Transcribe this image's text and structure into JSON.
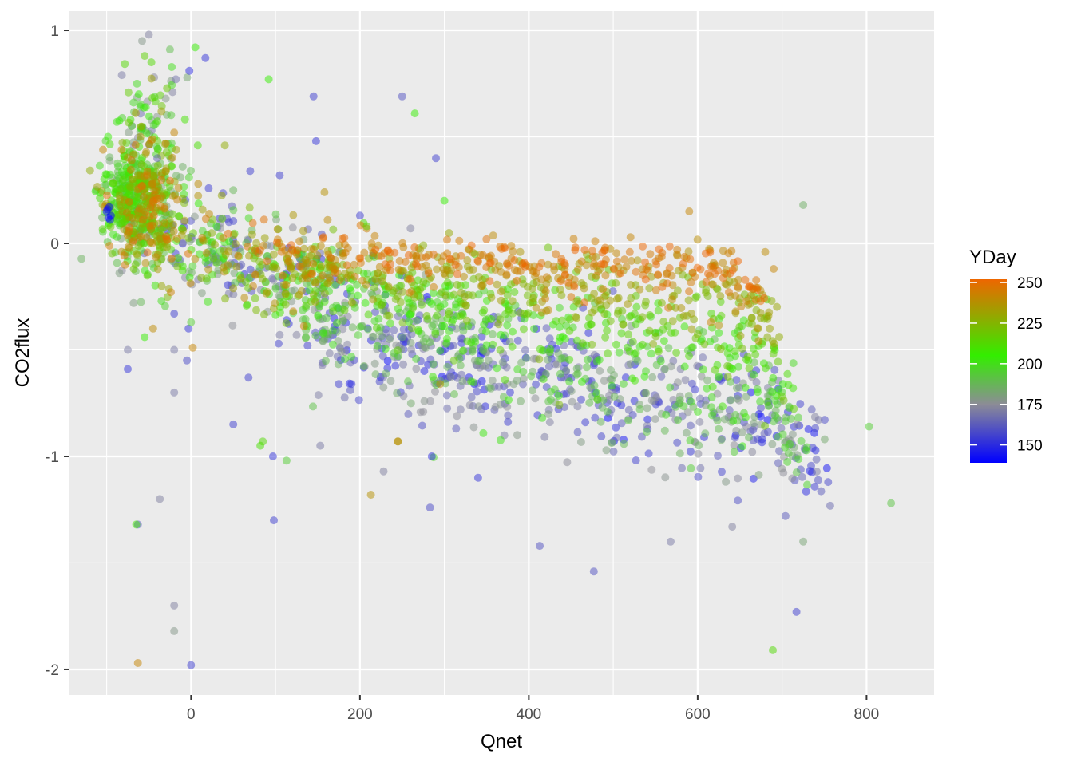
{
  "chart_data": {
    "type": "scatter",
    "title": "",
    "xlabel": "Qnet",
    "ylabel": "CO2flux",
    "xlim": [
      -145,
      880
    ],
    "ylim": [
      -2.12,
      1.09
    ],
    "x_ticks": [
      0,
      200,
      400,
      600,
      800
    ],
    "x_tick_labels": [
      "0",
      "200",
      "400",
      "600",
      "800"
    ],
    "y_ticks": [
      -2,
      -1,
      0,
      1
    ],
    "y_tick_labels": [
      "-2",
      "-1",
      "0",
      "1"
    ],
    "grid": true,
    "panel_background": "#ebebeb",
    "point_alpha": 0.5,
    "legend": {
      "title": "YDay",
      "position": "right",
      "breaks": [
        150,
        175,
        200,
        225,
        250
      ],
      "labels": [
        "150",
        "175",
        "200",
        "225",
        "250"
      ],
      "range": [
        139,
        252
      ],
      "colors": [
        {
          "value": 139,
          "color": "#0000ff"
        },
        {
          "value": 175,
          "color": "#8c8c96"
        },
        {
          "value": 205,
          "color": "#33ee00"
        },
        {
          "value": 252,
          "color": "#ee6600"
        }
      ]
    },
    "points": [
      {
        "x": -100,
        "y": 0.15,
        "c": 141
      },
      {
        "x": -98,
        "y": 0.12,
        "c": 142
      },
      {
        "x": -97,
        "y": 0.17,
        "c": 140
      },
      {
        "x": -95,
        "y": 0.13,
        "c": 141
      },
      {
        "x": -99,
        "y": 0.16,
        "c": 143
      },
      {
        "x": -96,
        "y": 0.11,
        "c": 142
      },
      {
        "x": -58,
        "y": 0.95,
        "c": 178
      },
      {
        "x": -50,
        "y": 0.98,
        "c": 172
      },
      {
        "x": -25,
        "y": 0.91,
        "c": 190
      },
      {
        "x": 5,
        "y": 0.92,
        "c": 205
      },
      {
        "x": 17,
        "y": 0.87,
        "c": 152
      },
      {
        "x": -2,
        "y": 0.81,
        "c": 150
      },
      {
        "x": -55,
        "y": 0.88,
        "c": 215
      },
      {
        "x": -82,
        "y": 0.79,
        "c": 170
      },
      {
        "x": -47,
        "y": 0.85,
        "c": 212
      },
      {
        "x": -18,
        "y": 0.77,
        "c": 168
      },
      {
        "x": -30,
        "y": 0.68,
        "c": 178
      },
      {
        "x": -88,
        "y": 0.57,
        "c": 202
      },
      {
        "x": -62,
        "y": 0.7,
        "c": 205
      },
      {
        "x": -35,
        "y": 0.62,
        "c": 232
      },
      {
        "x": -60,
        "y": 0.5,
        "c": 235
      },
      {
        "x": -20,
        "y": 0.52,
        "c": 242
      },
      {
        "x": 40,
        "y": 0.46,
        "c": 228
      },
      {
        "x": 8,
        "y": 0.46,
        "c": 210
      },
      {
        "x": -40,
        "y": 0.4,
        "c": 165
      },
      {
        "x": -10,
        "y": 0.36,
        "c": 185
      },
      {
        "x": 70,
        "y": 0.34,
        "c": 155
      },
      {
        "x": 105,
        "y": 0.32,
        "c": 155
      },
      {
        "x": 92,
        "y": 0.77,
        "c": 205
      },
      {
        "x": 145,
        "y": 0.69,
        "c": 155
      },
      {
        "x": 250,
        "y": 0.69,
        "c": 160
      },
      {
        "x": 265,
        "y": 0.61,
        "c": 205
      },
      {
        "x": 148,
        "y": 0.48,
        "c": 152
      },
      {
        "x": 290,
        "y": 0.4,
        "c": 155
      },
      {
        "x": 158,
        "y": 0.24,
        "c": 238
      },
      {
        "x": 50,
        "y": 0.25,
        "c": 188
      },
      {
        "x": 300,
        "y": 0.2,
        "c": 205
      },
      {
        "x": 200,
        "y": 0.13,
        "c": 155
      },
      {
        "x": 590,
        "y": 0.15,
        "c": 242
      },
      {
        "x": 725,
        "y": 0.18,
        "c": 185
      },
      {
        "x": 260,
        "y": 0.07,
        "c": 172
      },
      {
        "x": 208,
        "y": 0.08,
        "c": 215
      },
      {
        "x": 680,
        "y": -0.04,
        "c": 240
      },
      {
        "x": 690,
        "y": -0.12,
        "c": 242
      },
      {
        "x": -75,
        "y": -0.59,
        "c": 152
      },
      {
        "x": -75,
        "y": -0.5,
        "c": 170
      },
      {
        "x": -45,
        "y": -0.4,
        "c": 240
      },
      {
        "x": -55,
        "y": -0.44,
        "c": 205
      },
      {
        "x": -20,
        "y": -0.5,
        "c": 170
      },
      {
        "x": -5,
        "y": -0.55,
        "c": 158
      },
      {
        "x": -3,
        "y": -0.4,
        "c": 152
      },
      {
        "x": 2,
        "y": -0.49,
        "c": 242
      },
      {
        "x": -20,
        "y": -0.7,
        "c": 170
      },
      {
        "x": 0,
        "y": -0.37,
        "c": 195
      },
      {
        "x": -20,
        "y": -0.33,
        "c": 155
      },
      {
        "x": -35,
        "y": -0.27,
        "c": 200
      },
      {
        "x": -68,
        "y": -0.28,
        "c": 180
      },
      {
        "x": 50,
        "y": -0.85,
        "c": 155
      },
      {
        "x": 68,
        "y": -0.63,
        "c": 155
      },
      {
        "x": 82,
        "y": -0.95,
        "c": 210
      },
      {
        "x": 85,
        "y": -0.93,
        "c": 212
      },
      {
        "x": 97,
        "y": -1.0,
        "c": 152
      },
      {
        "x": 113,
        "y": -1.02,
        "c": 195
      },
      {
        "x": 98,
        "y": -1.3,
        "c": 155
      },
      {
        "x": 153,
        "y": -0.95,
        "c": 170
      },
      {
        "x": 213,
        "y": -1.18,
        "c": 238
      },
      {
        "x": 228,
        "y": -1.07,
        "c": 172
      },
      {
        "x": 245,
        "y": -0.93,
        "c": 238
      },
      {
        "x": 285,
        "y": -1.0,
        "c": 150
      },
      {
        "x": 283,
        "y": -1.24,
        "c": 158
      },
      {
        "x": 340,
        "y": -1.1,
        "c": 152
      },
      {
        "x": 413,
        "y": -1.42,
        "c": 160
      },
      {
        "x": 477,
        "y": -1.54,
        "c": 160
      },
      {
        "x": 568,
        "y": -1.4,
        "c": 170
      },
      {
        "x": 641,
        "y": -1.33,
        "c": 172
      },
      {
        "x": 704,
        "y": -1.28,
        "c": 162
      },
      {
        "x": 725,
        "y": -1.4,
        "c": 182
      },
      {
        "x": 717,
        "y": -1.73,
        "c": 155
      },
      {
        "x": 689,
        "y": -1.91,
        "c": 212
      },
      {
        "x": 803,
        "y": -0.86,
        "c": 195
      },
      {
        "x": 829,
        "y": -1.22,
        "c": 192
      },
      {
        "x": -63,
        "y": -1.97,
        "c": 242
      },
      {
        "x": 0,
        "y": -1.98,
        "c": 155
      },
      {
        "x": -20,
        "y": -1.7,
        "c": 172
      },
      {
        "x": -20,
        "y": -1.82,
        "c": 178
      },
      {
        "x": -63,
        "y": -1.32,
        "c": 160
      },
      {
        "x": -65,
        "y": -1.32,
        "c": 208
      },
      {
        "x": -37,
        "y": -1.2,
        "c": 172
      },
      {
        "x": 245,
        "y": -0.93,
        "c": 238
      },
      {
        "x": 275,
        "y": -0.79,
        "c": 175
      },
      {
        "x": 295,
        "y": -0.66,
        "c": 238
      },
      {
        "x": 190,
        "y": -0.66,
        "c": 152
      },
      {
        "x": 175,
        "y": -0.66,
        "c": 155
      },
      {
        "x": 125,
        "y": -0.43,
        "c": 172
      },
      {
        "x": 138,
        "y": -0.48,
        "c": 155
      },
      {
        "x": 105,
        "y": -0.43,
        "c": 170
      }
    ],
    "clusters": [
      {
        "xc": -55,
        "xs": 22,
        "yc": 0.2,
        "ys": 0.16,
        "n": 380,
        "c0": 180,
        "c1": 250
      },
      {
        "xc": -80,
        "xs": 14,
        "yc": 0.22,
        "ys": 0.09,
        "n": 120,
        "c0": 185,
        "c1": 215
      },
      {
        "xc": -45,
        "xs": 22,
        "yc": 0.05,
        "ys": 0.1,
        "n": 80,
        "c0": 145,
        "c1": 252
      },
      {
        "xc": -50,
        "xs": 20,
        "yc": 0.55,
        "ys": 0.12,
        "n": 70,
        "c0": 165,
        "c1": 220
      },
      {
        "xc": 30,
        "xs": 30,
        "yc": 0.0,
        "ys": 0.1,
        "n": 140,
        "c0": 150,
        "c1": 250
      },
      {
        "xc": 110,
        "xs": 50,
        "yc": -0.15,
        "ys": 0.11,
        "n": 200,
        "c0": 150,
        "c1": 250
      }
    ],
    "bands": [
      {
        "c": 245,
        "x0": 100,
        "x1": 680,
        "y0": -0.05,
        "y1": -0.12,
        "sd": 0.055,
        "n": 320,
        "spread": 6,
        "drop_after": 640,
        "drop_to": -0.25
      },
      {
        "c": 228,
        "x0": 110,
        "x1": 700,
        "y0": -0.12,
        "y1": -0.3,
        "sd": 0.07,
        "n": 280,
        "spread": 8,
        "drop_after": 650,
        "drop_to": -0.45
      },
      {
        "c": 208,
        "x0": 110,
        "x1": 715,
        "y0": -0.2,
        "y1": -0.55,
        "sd": 0.08,
        "n": 320,
        "spread": 8,
        "drop_after": 670,
        "drop_to": -0.7
      },
      {
        "c": 190,
        "x0": 130,
        "x1": 730,
        "y0": -0.35,
        "y1": -0.85,
        "sd": 0.12,
        "n": 300,
        "spread": 10,
        "drop_after": 690,
        "drop_to": -1.0
      },
      {
        "c": 172,
        "x0": 140,
        "x1": 760,
        "y0": -0.4,
        "y1": -0.95,
        "sd": 0.14,
        "n": 300,
        "spread": 12,
        "drop_after": 700,
        "drop_to": -1.05
      },
      {
        "c": 155,
        "x0": 150,
        "x1": 740,
        "y0": -0.38,
        "y1": -0.9,
        "sd": 0.13,
        "n": 220,
        "spread": 8,
        "drop_after": 700,
        "drop_to": -1.0
      }
    ]
  }
}
